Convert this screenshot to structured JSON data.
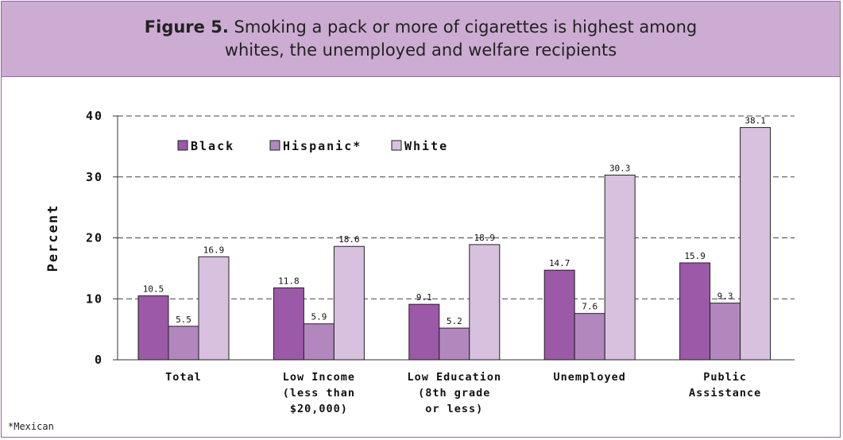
{
  "header": {
    "figure_label": "Figure 5.",
    "title_line1": "Smoking a pack or more of cigarettes is highest among",
    "title_line2": "whites, the unemployed and welfare recipients"
  },
  "footnote": "*Mexican",
  "colors": {
    "black_series": "#9b59a7",
    "hispanic_series": "#b287be",
    "white_series": "#d7c1de",
    "header_bg": "#ccacd2",
    "frame": "#8e6aa0"
  },
  "chart_data": {
    "type": "bar",
    "title": "Smoking a pack or more of cigarettes is highest among whites, the unemployed and welfare recipients",
    "xlabel": "",
    "ylabel": "Percent",
    "ylim": [
      0,
      40
    ],
    "yticks": [
      0,
      10,
      20,
      30,
      40
    ],
    "grid": true,
    "legend_position": "top-left",
    "categories": [
      [
        "Total"
      ],
      [
        "Low Income",
        "(less than",
        "$20,000)"
      ],
      [
        "Low Education",
        "(8th grade",
        "or less)"
      ],
      [
        "Unemployed"
      ],
      [
        "Public",
        "Assistance"
      ]
    ],
    "series": [
      {
        "name": "Black",
        "values": [
          10.5,
          11.8,
          9.1,
          14.7,
          15.9
        ]
      },
      {
        "name": "Hispanic*",
        "values": [
          5.5,
          5.9,
          5.2,
          7.6,
          9.3
        ]
      },
      {
        "name": "White",
        "values": [
          16.9,
          18.6,
          18.9,
          30.3,
          38.1
        ]
      }
    ]
  }
}
